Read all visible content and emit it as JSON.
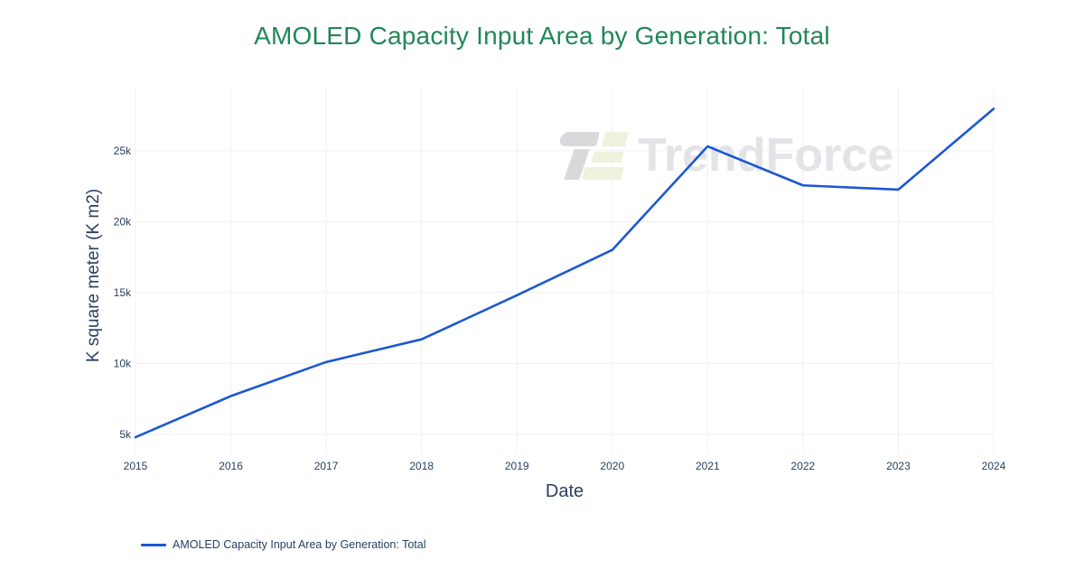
{
  "chart_data": {
    "type": "line",
    "title": "AMOLED Capacity Input Area by Generation: Total",
    "xlabel": "Date",
    "ylabel": "K square meter (K m2)",
    "x": [
      2015,
      2016,
      2017,
      2018,
      2019,
      2020,
      2021,
      2022,
      2023,
      2024
    ],
    "xtick_labels": [
      "2015",
      "2016",
      "2017",
      "2018",
      "2019",
      "2020",
      "2021",
      "2022",
      "2023",
      "2024"
    ],
    "yticks": {
      "values": [
        5000,
        10000,
        15000,
        20000,
        25000
      ],
      "labels": [
        "5k",
        "10k",
        "15k",
        "20k",
        "25k"
      ]
    },
    "series": [
      {
        "name": "AMOLED Capacity Input Area by Generation: Total",
        "values": [
          4800,
          7700,
          10100,
          11700,
          14800,
          18000,
          25300,
          22550,
          22250,
          27950
        ]
      }
    ],
    "xlim": [
      2015,
      2024
    ],
    "ylim": [
      3660,
      29440
    ],
    "grid": true,
    "legend_position": "bottom-left",
    "colors": {
      "line": "#1c57d4",
      "title": "#218857",
      "axis_text": "#2a3f5f",
      "grid": "#eef0f4",
      "background": "#ffffff"
    },
    "watermark": {
      "text": "TrendForce",
      "text_color": "#e3e4e8",
      "logo_gray": "#d8d9db",
      "logo_green": "#edf2dc"
    }
  }
}
